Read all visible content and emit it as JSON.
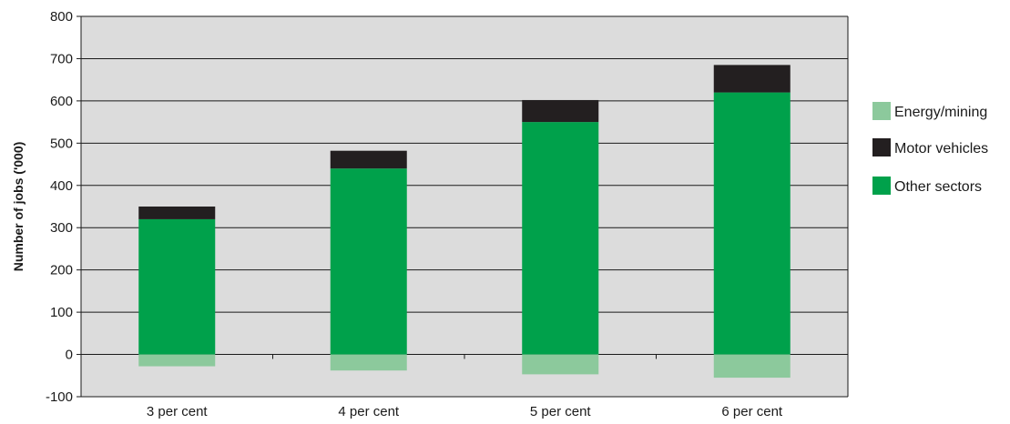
{
  "chart_data": {
    "type": "bar",
    "stacked": true,
    "categories": [
      "3 per cent",
      "4 per cent",
      "5 per cent",
      "6 per cent"
    ],
    "series": [
      {
        "name": "Energy/mining",
        "values": [
          -28,
          -38,
          -47,
          -55
        ],
        "color": "#8cc99c"
      },
      {
        "name": "Motor vehicles",
        "values": [
          30,
          42,
          52,
          65
        ],
        "color": "#231f20"
      },
      {
        "name": "Other sectors",
        "values": [
          320,
          440,
          550,
          620
        ],
        "color": "#00a14b"
      }
    ],
    "stack_order_positive": [
      "Other sectors",
      "Motor vehicles"
    ],
    "ylabel": "Number of jobs ('000)",
    "ylim": [
      -100,
      800
    ],
    "yticks": [
      "-100",
      "0",
      "100",
      "200",
      "300",
      "400",
      "500",
      "600",
      "700",
      "800"
    ],
    "grid": true,
    "legend_position": "right",
    "plot_background": "#dcdcdc"
  }
}
